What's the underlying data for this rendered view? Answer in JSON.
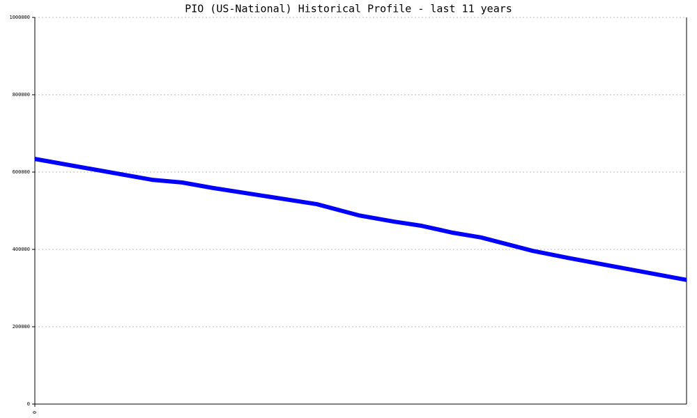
{
  "chart_data": {
    "type": "line",
    "title": "PIO (US-National) Historical Profile - last 11 years",
    "x": [
      0,
      1.98,
      2.49,
      3.0,
      4.76,
      5.47,
      6.06,
      6.53,
      7.06,
      7.53,
      8.41,
      9.0,
      11
    ],
    "series": [
      {
        "color": "#0000ff",
        "values": [
          634000,
          580000,
          573000,
          559000,
          517000,
          488000,
          472000,
          461000,
          443000,
          431000,
          396000,
          378000,
          321000
        ]
      }
    ],
    "xlim": [
      0,
      11
    ],
    "xticks": [
      0
    ],
    "ylim": [
      0,
      1000000
    ],
    "yticks": [
      0,
      200000,
      400000,
      600000,
      800000,
      1000000
    ],
    "grid": true
  }
}
